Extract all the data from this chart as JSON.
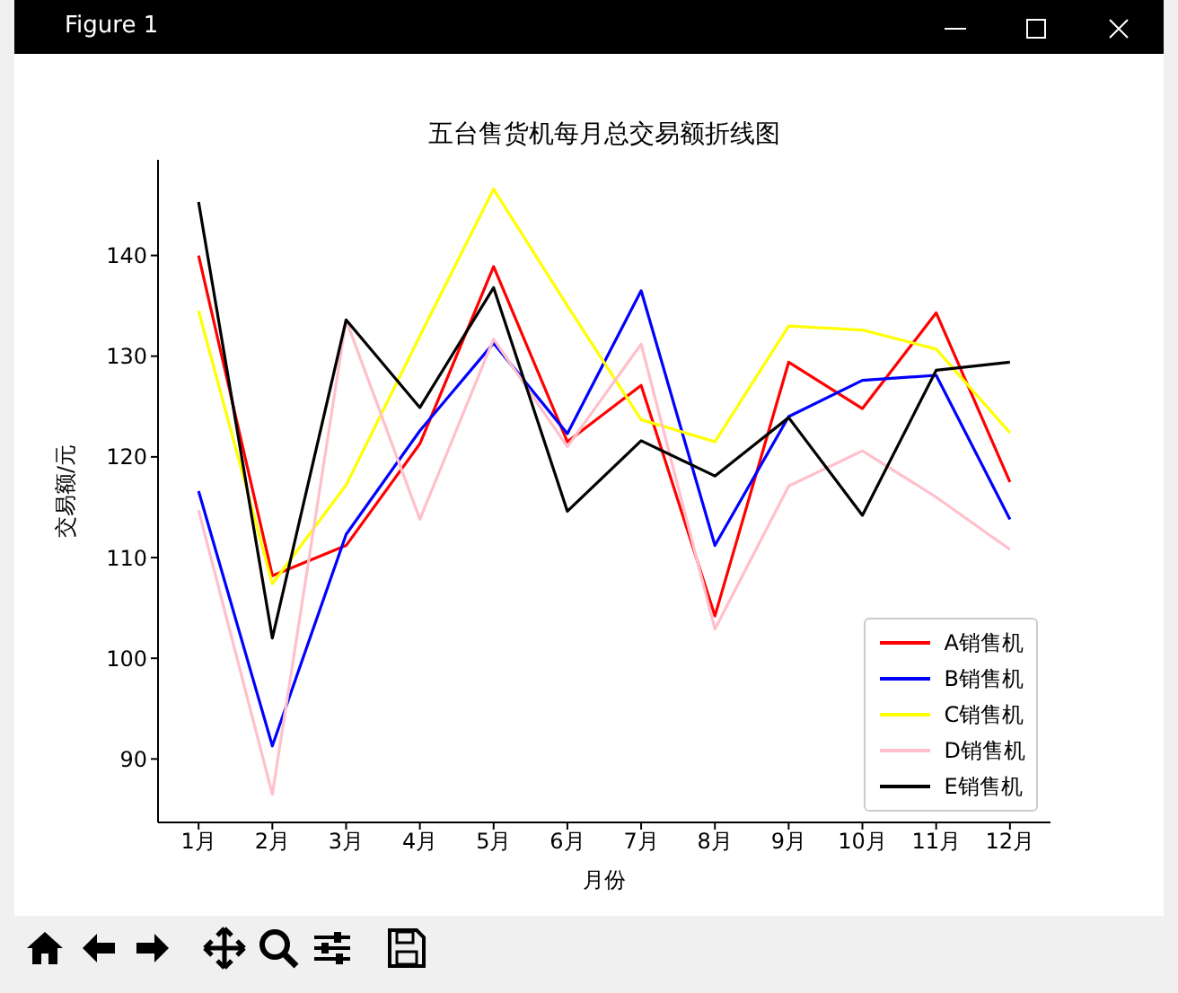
{
  "chart_data": {
    "type": "line",
    "title": "五台售货机每月总交易额折线图",
    "xlabel": "月份",
    "ylabel": "交易额/元",
    "annotations": [
      "Figure 1"
    ],
    "categories": [
      "1月",
      "2月",
      "3月",
      "4月",
      "5月",
      "6月",
      "7月",
      "8月",
      "9月",
      "10月",
      "11月",
      "12月"
    ],
    "series": [
      {
        "name": "A销售机",
        "color": "#ff0000",
        "values": [
          140,
          108.2,
          111.2,
          121.3,
          138.9,
          121.5,
          127.1,
          104.2,
          129.4,
          124.8,
          134.3,
          117.5
        ]
      },
      {
        "name": "B销售机",
        "color": "#0000ff",
        "values": [
          116.6,
          91.3,
          112.3,
          122.6,
          131.3,
          122.3,
          136.5,
          111.2,
          124,
          127.6,
          128.1,
          113.8
        ]
      },
      {
        "name": "C销售机",
        "color": "#ffff00",
        "values": [
          134.5,
          107.4,
          117.2,
          132,
          146.6,
          135,
          123.7,
          121.5,
          133,
          132.6,
          130.7,
          122.4
        ]
      },
      {
        "name": "D销售机",
        "color": "#ffc0cb",
        "values": [
          114.7,
          86.5,
          133.6,
          113.8,
          131.7,
          121,
          131.2,
          102.9,
          117.1,
          120.6,
          116,
          110.8
        ]
      },
      {
        "name": "E销售机",
        "color": "#000000",
        "values": [
          145.3,
          102,
          133.6,
          124.9,
          136.8,
          114.6,
          121.6,
          118.1,
          123.9,
          114.2,
          128.6,
          129.4
        ]
      }
    ],
    "ylim": [
      83.7,
      149.5
    ],
    "yticks": [
      90,
      100,
      110,
      120,
      130,
      140
    ],
    "grid": false,
    "legend": "bottom right",
    "marker": "none",
    "line_style": "solid"
  }
}
